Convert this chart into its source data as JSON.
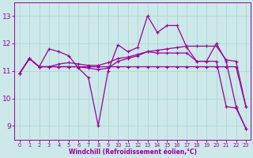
{
  "xlabel": "Windchill (Refroidissement éolien,°C)",
  "background_color": "#cce8e8",
  "line_color": "#990099",
  "grid_color": "#aad4d4",
  "xlim_min": -0.5,
  "xlim_max": 23.5,
  "ylim_min": 8.5,
  "ylim_max": 13.5,
  "xticks": [
    0,
    1,
    2,
    3,
    4,
    5,
    6,
    7,
    8,
    9,
    10,
    11,
    12,
    13,
    14,
    15,
    16,
    17,
    18,
    19,
    20,
    21,
    22,
    23
  ],
  "yticks": [
    9,
    10,
    11,
    12,
    13
  ],
  "series_jagged": [
    10.9,
    11.45,
    11.15,
    11.8,
    11.7,
    11.55,
    11.1,
    10.75,
    9.0,
    11.0,
    11.95,
    11.7,
    11.85,
    13.0,
    12.4,
    12.65,
    12.65,
    11.85,
    11.35,
    11.35,
    12.0,
    11.35,
    9.7,
    8.9
  ],
  "series_trend_up": [
    10.9,
    11.45,
    11.15,
    11.15,
    11.25,
    11.3,
    11.25,
    11.2,
    11.2,
    11.3,
    11.45,
    11.5,
    11.6,
    11.7,
    11.75,
    11.8,
    11.85,
    11.9,
    11.9,
    11.9,
    11.9,
    11.4,
    11.35,
    9.7
  ],
  "series_flat": [
    10.9,
    11.45,
    11.15,
    11.15,
    11.15,
    11.15,
    11.15,
    11.15,
    11.15,
    11.15,
    11.15,
    11.15,
    11.15,
    11.15,
    11.15,
    11.15,
    11.15,
    11.15,
    11.15,
    11.15,
    11.15,
    11.15,
    11.15,
    9.7
  ],
  "series_descent": [
    10.9,
    11.45,
    11.15,
    11.15,
    11.15,
    11.15,
    11.15,
    11.1,
    11.05,
    11.1,
    11.35,
    11.45,
    11.55,
    11.7,
    11.65,
    11.65,
    11.65,
    11.65,
    11.35,
    11.35,
    11.35,
    9.7,
    9.65,
    8.9
  ]
}
